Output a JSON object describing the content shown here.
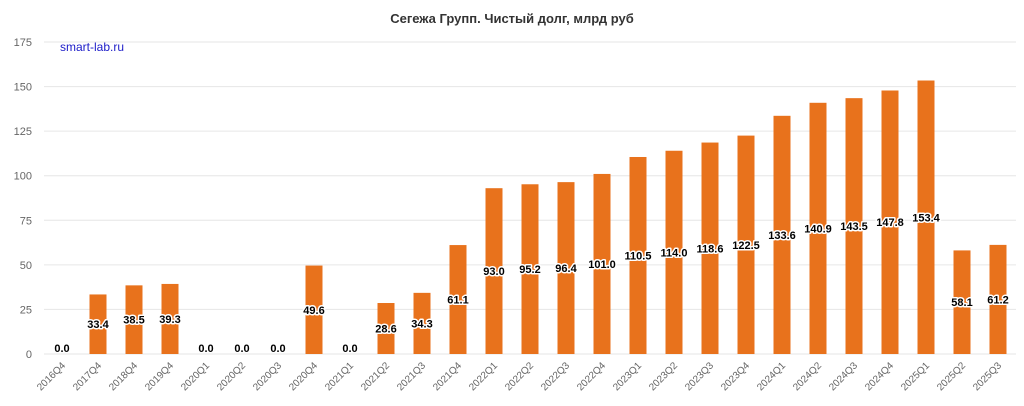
{
  "colors": {
    "bar": "#E8721C",
    "grid": "#e6e6e6",
    "axis_text": "#666666",
    "watermark": "#1c1cc8"
  },
  "watermark": "smart-lab.ru",
  "chart_data": {
    "type": "bar",
    "title": "Сегежа Групп. Чистый долг, млрд руб",
    "xlabel": "",
    "ylabel": "",
    "ylim": [
      0,
      175
    ],
    "yticks": [
      0,
      25,
      50,
      75,
      100,
      125,
      150,
      175
    ],
    "grid": true,
    "legend": "none",
    "categories": [
      "2016Q4",
      "2017Q4",
      "2018Q4",
      "2019Q4",
      "2020Q1",
      "2020Q2",
      "2020Q3",
      "2020Q4",
      "2021Q1",
      "2021Q2",
      "2021Q3",
      "2021Q4",
      "2022Q1",
      "2022Q2",
      "2022Q3",
      "2022Q4",
      "2023Q1",
      "2023Q2",
      "2023Q3",
      "2023Q4",
      "2024Q1",
      "2024Q2",
      "2024Q3",
      "2024Q4",
      "2025Q1",
      "2025Q2",
      "2025Q3"
    ],
    "values": [
      0.0,
      33.4,
      38.5,
      39.3,
      0.0,
      0.0,
      0.0,
      49.6,
      0.0,
      28.6,
      34.3,
      61.1,
      93.0,
      95.2,
      96.4,
      101.0,
      110.5,
      114.0,
      118.6,
      122.5,
      133.6,
      140.9,
      143.5,
      147.8,
      153.4,
      58.1,
      61.2
    ],
    "labels": [
      "0.0",
      "33.4",
      "38.5",
      "39.3",
      "0.0",
      "0.0",
      "0.0",
      "49.6",
      "0.0",
      "28.6",
      "34.3",
      "61.1",
      "93.0",
      "95.2",
      "96.4",
      "101.0",
      "110.5",
      "114.0",
      "118.6",
      "122.5",
      "133.6",
      "140.9",
      "143.5",
      "147.8",
      "153.4",
      "58.1",
      "61.2"
    ]
  }
}
